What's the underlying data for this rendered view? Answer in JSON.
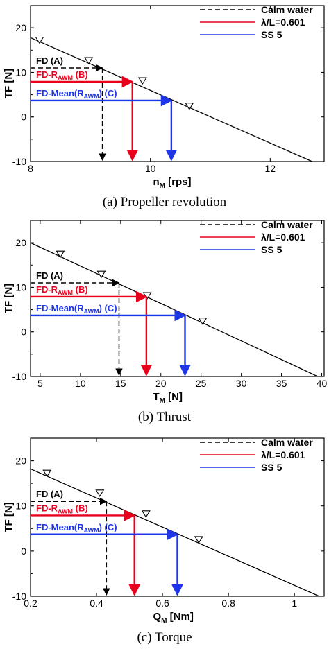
{
  "chart_data": [
    {
      "type": "line",
      "caption": "(a) Propeller revolution",
      "xlabel": {
        "main": "n",
        "sub": "M",
        "rest": " [rps]"
      },
      "ylabel": "TF [N]",
      "xlim": [
        8,
        12.9
      ],
      "ylim": [
        -10,
        25
      ],
      "xticks": [
        "8",
        "10",
        "12"
      ],
      "yticks": [
        "-10",
        "0",
        "10",
        "20"
      ],
      "legend": [
        {
          "label": "Calm water",
          "color": "#000000",
          "dash": true
        },
        {
          "label": "λ/L=0.601",
          "color": "#e8001c",
          "dash": false
        },
        {
          "label": "SS 5",
          "color": "#1f36e8",
          "dash": false
        }
      ],
      "line": {
        "x": [
          8,
          12.7
        ],
        "y": [
          17.8,
          -10
        ]
      },
      "markers": {
        "x": [
          8.15,
          8.97,
          9.87,
          10.65
        ],
        "y": [
          17.3,
          12.7,
          8.2,
          2.5
        ]
      },
      "annotations": [
        {
          "label": "FD (A)",
          "parts": [],
          "tf": 11.0,
          "x": 9.2,
          "color": "#000000",
          "dash": true
        },
        {
          "label": "",
          "parts": [
            "FD-R",
            "AWM",
            " (B)"
          ],
          "tf": 7.9,
          "x": 9.7,
          "color": "#e8001c",
          "dash": false
        },
        {
          "label": "",
          "parts": [
            "FD-Mean(R",
            "AWM",
            ") (C)"
          ],
          "tf": 3.7,
          "x": 10.35,
          "color": "#1f36e8",
          "dash": false
        }
      ]
    },
    {
      "type": "line",
      "caption": "(b) Thrust",
      "xlabel": {
        "main": "T",
        "sub": "M",
        "rest": " [N]"
      },
      "ylabel": "TF [N]",
      "xlim": [
        3.8,
        40.3
      ],
      "ylim": [
        -10,
        25
      ],
      "xticks": [
        "5",
        "10",
        "15",
        "20",
        "25",
        "30",
        "35",
        "40"
      ],
      "yticks": [
        "-10",
        "0",
        "10",
        "20"
      ],
      "legend": [
        {
          "label": "Calm water",
          "color": "#000000",
          "dash": true
        },
        {
          "label": "λ/L=0.601",
          "color": "#e8001c",
          "dash": false
        },
        {
          "label": "SS 5",
          "color": "#1f36e8",
          "dash": false
        }
      ],
      "line": {
        "x": [
          3.8,
          39.5
        ],
        "y": [
          20,
          -10
        ]
      },
      "markers": {
        "x": [
          7.5,
          12.6,
          18.3,
          25.2
        ],
        "y": [
          17.5,
          13,
          8.2,
          2.5
        ]
      },
      "annotations": [
        {
          "label": "FD (A)",
          "parts": [],
          "tf": 11.0,
          "x": 14.8,
          "color": "#000000",
          "dash": true
        },
        {
          "label": "",
          "parts": [
            "FD-R",
            "AWM",
            " (B)"
          ],
          "tf": 7.9,
          "x": 18.2,
          "color": "#e8001c",
          "dash": false
        },
        {
          "label": "",
          "parts": [
            "FD-Mean(R",
            "AWM",
            ") (C)"
          ],
          "tf": 3.7,
          "x": 23.0,
          "color": "#1f36e8",
          "dash": false
        }
      ]
    },
    {
      "type": "line",
      "caption": "(c) Torque",
      "xlabel": {
        "main": "Q",
        "sub": "M",
        "rest": " [Nm]"
      },
      "ylabel": "TF [N]",
      "xlim": [
        0.2,
        1.09
      ],
      "ylim": [
        -10,
        25
      ],
      "xticks": [
        "0.2",
        "0.4",
        "0.6",
        "0.8",
        "1"
      ],
      "yticks": [
        "-10",
        "0",
        "10",
        "20"
      ],
      "legend": [
        {
          "label": "Calm water",
          "color": "#000000",
          "dash": true
        },
        {
          "label": "λ/L=0.601",
          "color": "#e8001c",
          "dash": false
        },
        {
          "label": "SS 5",
          "color": "#1f36e8",
          "dash": false
        }
      ],
      "line": {
        "x": [
          0.2,
          1.075
        ],
        "y": [
          18.2,
          -10
        ]
      },
      "markers": {
        "x": [
          0.25,
          0.41,
          0.55,
          0.71
        ],
        "y": [
          17.3,
          12.9,
          8.3,
          2.6
        ]
      },
      "annotations": [
        {
          "label": "FD (A)",
          "parts": [],
          "tf": 11.0,
          "x": 0.43,
          "color": "#000000",
          "dash": true
        },
        {
          "label": "",
          "parts": [
            "FD-R",
            "AWM",
            " (B)"
          ],
          "tf": 7.9,
          "x": 0.515,
          "color": "#e8001c",
          "dash": false
        },
        {
          "label": "",
          "parts": [
            "FD-Mean(R",
            "AWM",
            ") (C)"
          ],
          "tf": 3.7,
          "x": 0.645,
          "color": "#1f36e8",
          "dash": false
        }
      ]
    }
  ]
}
